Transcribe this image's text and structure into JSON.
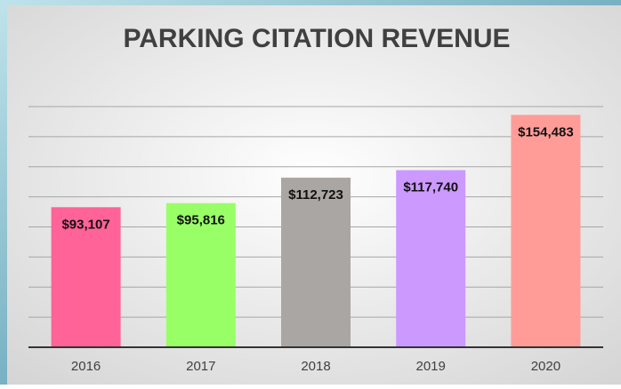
{
  "chart_data": {
    "type": "bar",
    "title": "PARKING CITATION REVENUE",
    "categories": [
      "2016",
      "2017",
      "2018",
      "2019",
      "2020"
    ],
    "values": [
      93107,
      95816,
      112723,
      117740,
      154483
    ],
    "value_labels": [
      "$93,107",
      "$95,816",
      "$112,723",
      "$117,740",
      "$154,483"
    ],
    "colors": [
      "#ff6398",
      "#99ff66",
      "#aaa6a3",
      "#cc99ff",
      "#ff9c98"
    ],
    "ylim": [
      0,
      160000
    ],
    "yticks": [
      0,
      20000,
      40000,
      60000,
      80000,
      100000,
      120000,
      140000,
      160000
    ],
    "grid": true
  }
}
